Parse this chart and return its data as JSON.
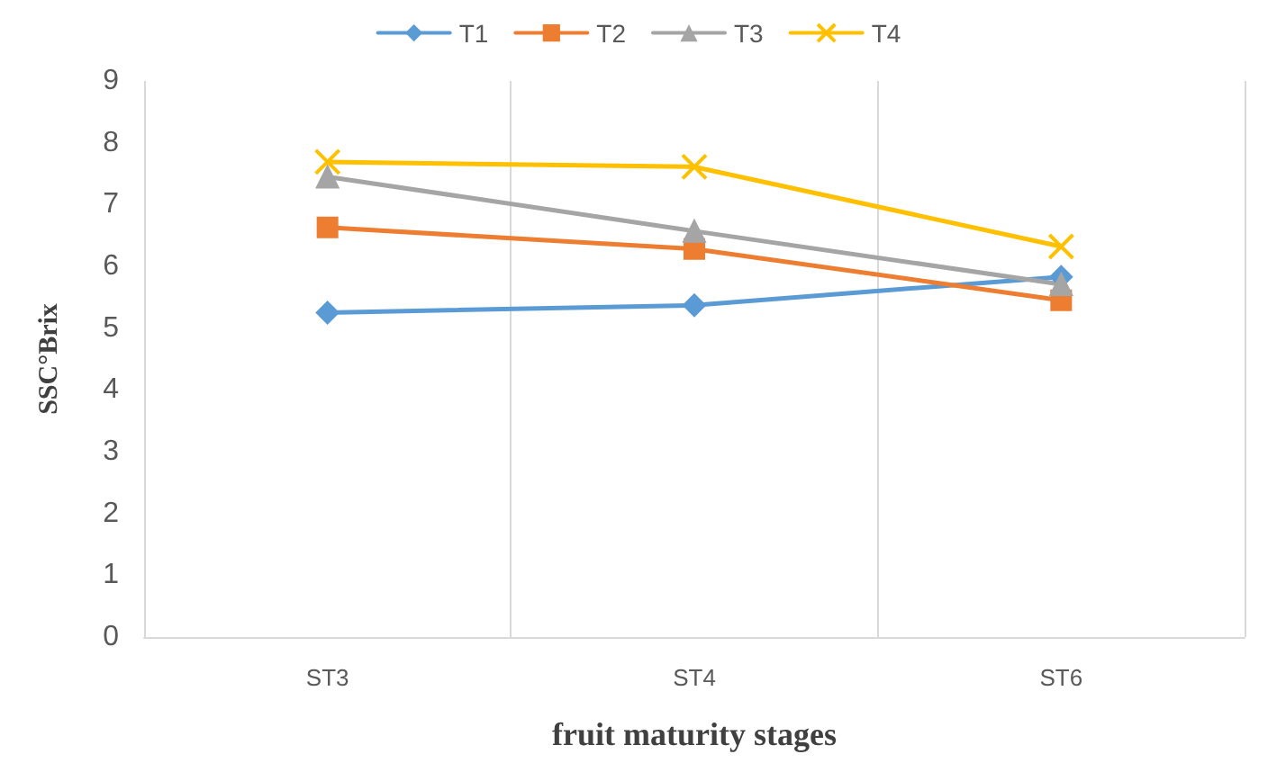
{
  "chart_data": {
    "type": "line",
    "xlabel": "fruit maturity stages",
    "ylabel": "SSC°Brix",
    "categories": [
      "ST3",
      "ST4",
      "ST6"
    ],
    "series": [
      {
        "name": "T1",
        "color": "#5b9bd5",
        "marker": "diamond",
        "values": [
          5.25,
          5.37,
          5.83
        ]
      },
      {
        "name": "T2",
        "color": "#ed7d31",
        "marker": "square",
        "values": [
          6.63,
          6.28,
          5.45
        ]
      },
      {
        "name": "T3",
        "color": "#a5a5a5",
        "marker": "triangle",
        "values": [
          7.45,
          6.57,
          5.71
        ]
      },
      {
        "name": "T4",
        "color": "#ffc000",
        "marker": "cross",
        "values": [
          7.69,
          7.61,
          6.32
        ]
      }
    ],
    "ylim": [
      0,
      9
    ],
    "yticks": [
      0,
      1,
      2,
      3,
      4,
      5,
      6,
      7,
      8,
      9
    ],
    "grid": "x",
    "legend": "top",
    "line_style": "solid"
  }
}
